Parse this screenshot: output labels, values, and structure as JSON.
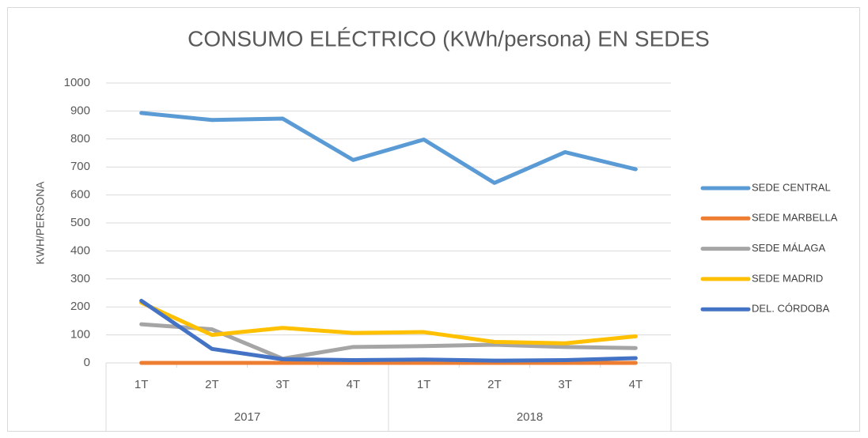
{
  "chart_data": {
    "type": "line",
    "title": "CONSUMO ELÉCTRICO (KWh/persona) EN SEDES",
    "y_label": "KWH/PERSONA",
    "categories": [
      "1T",
      "2T",
      "3T",
      "4T",
      "1T",
      "2T",
      "3T",
      "4T"
    ],
    "category_groups": [
      "2017",
      "2018"
    ],
    "series": [
      {
        "name": "SEDE CENTRAL",
        "color": "#5b9bd5",
        "values": [
          893,
          868,
          873,
          725,
          798,
          643,
          753,
          692
        ]
      },
      {
        "name": "SEDE MARBELLA",
        "color": "#ed7d31",
        "values": [
          0,
          0,
          0,
          0,
          0,
          0,
          0,
          0
        ]
      },
      {
        "name": "SEDE MÁLAGA",
        "color": "#a5a5a5",
        "values": [
          138,
          120,
          15,
          57,
          60,
          65,
          57,
          53
        ]
      },
      {
        "name": "SEDE MADRID",
        "color": "#ffc000",
        "values": [
          215,
          100,
          125,
          107,
          110,
          75,
          70,
          95
        ]
      },
      {
        "name": "DEL. CÓRDOBA",
        "color": "#4472c4",
        "values": [
          222,
          50,
          13,
          10,
          12,
          8,
          10,
          17
        ]
      }
    ],
    "ylim": [
      0,
      1000
    ],
    "yticks": [
      0,
      100,
      200,
      300,
      400,
      500,
      600,
      700,
      800,
      900,
      1000
    ],
    "grid": true,
    "legend": "right"
  }
}
